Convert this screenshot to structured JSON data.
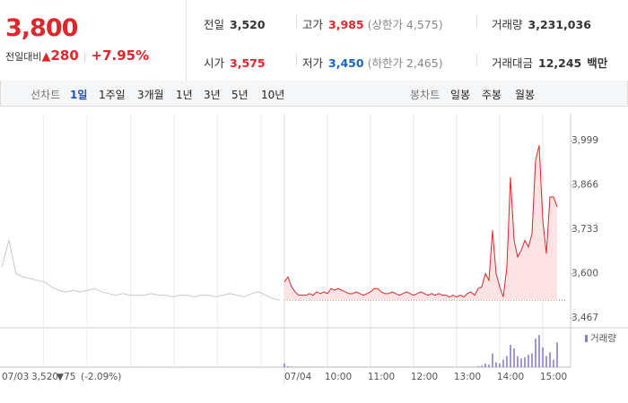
{
  "header": {
    "price": "3,800",
    "change_label": "전일대비",
    "change": "280",
    "change_pct": "+7.95%"
  },
  "stats": {
    "prev_label": "전일",
    "prev": "3,520",
    "high_label": "고가",
    "high": "3,985",
    "upper_limit": "(상한가 4,575)",
    "volume_label": "거래량",
    "volume": "3,231,036",
    "open_label": "시가",
    "open": "3,575",
    "low_label": "저가",
    "low": "3,450",
    "lower_limit": "(하한가 2,465)",
    "amount_label": "거래대금",
    "amount": "12,245",
    "amount_unit": "백만"
  },
  "tabs": {
    "line_label": "선차트",
    "line_periods": [
      "1일",
      "1주일",
      "3개월",
      "1년",
      "3년",
      "5년",
      "10년"
    ],
    "candle_label": "봉차트",
    "candle_periods": [
      "일봉",
      "주봉",
      "월봉"
    ]
  },
  "chart_data": {
    "type": "line",
    "ylim": [
      3440,
      4080
    ],
    "yticks": [
      {
        "value": 3999,
        "label": "3,999"
      },
      {
        "value": 3866,
        "label": "3,866"
      },
      {
        "value": 3733,
        "label": "3,733"
      },
      {
        "value": 3600,
        "label": "3,600"
      },
      {
        "value": 3467,
        "label": "3,467"
      }
    ],
    "xticks": [
      {
        "value": "09:00",
        "label": "07/04"
      },
      "10:00",
      "11:00",
      "12:00",
      "13:00",
      "14:00",
      "15:00"
    ],
    "baseline": 3520,
    "previous": {
      "date": "07/03",
      "close": "3,520",
      "change": "▼75",
      "change_pct": "(-2.09%)",
      "color": "#c8c8c8",
      "values": [
        3620,
        3700,
        3600,
        3590,
        3585,
        3580,
        3575,
        3560,
        3550,
        3545,
        3550,
        3545,
        3550,
        3555,
        3545,
        3540,
        3535,
        3540,
        3535,
        3535,
        3535,
        3540,
        3535,
        3535,
        3530,
        3535,
        3535,
        3530,
        3535,
        3535,
        3530,
        3535,
        3540,
        3535,
        3530,
        3540,
        3545,
        3535,
        3525,
        3520
      ]
    },
    "x": [
      "09:00",
      "09:05",
      "09:10",
      "09:15",
      "09:20",
      "09:25",
      "09:30",
      "09:35",
      "09:40",
      "09:45",
      "09:50",
      "09:55",
      "10:00",
      "10:05",
      "10:10",
      "10:15",
      "10:20",
      "10:25",
      "10:30",
      "10:35",
      "10:40",
      "10:45",
      "10:50",
      "10:55",
      "11:00",
      "11:05",
      "11:10",
      "11:15",
      "11:20",
      "11:25",
      "11:30",
      "11:35",
      "11:40",
      "11:45",
      "11:50",
      "11:55",
      "12:00",
      "12:05",
      "12:10",
      "12:15",
      "12:20",
      "12:25",
      "12:30",
      "12:35",
      "12:40",
      "12:45",
      "12:50",
      "12:55",
      "13:00",
      "13:05",
      "13:10",
      "13:15",
      "13:20",
      "13:25",
      "13:30",
      "13:35",
      "13:40",
      "13:45",
      "13:50",
      "13:55",
      "14:00",
      "14:05",
      "14:10",
      "14:15",
      "14:20",
      "14:25",
      "14:30",
      "14:35",
      "14:40",
      "14:45",
      "14:50",
      "14:55",
      "15:00",
      "15:05",
      "15:10",
      "15:15",
      "15:20"
    ],
    "series": [
      {
        "name": "price",
        "color": "#e0262a",
        "values": [
          3575,
          3590,
          3560,
          3545,
          3535,
          3535,
          3535,
          3540,
          3535,
          3545,
          3540,
          3545,
          3540,
          3555,
          3550,
          3555,
          3550,
          3545,
          3540,
          3540,
          3545,
          3540,
          3535,
          3540,
          3545,
          3555,
          3555,
          3545,
          3540,
          3540,
          3545,
          3540,
          3535,
          3540,
          3545,
          3540,
          3535,
          3540,
          3545,
          3540,
          3535,
          3540,
          3535,
          3540,
          3535,
          3535,
          3530,
          3535,
          3530,
          3535,
          3530,
          3540,
          3545,
          3535,
          3555,
          3560,
          3600,
          3580,
          3730,
          3600,
          3560,
          3530,
          3620,
          3890,
          3700,
          3650,
          3670,
          3700,
          3680,
          3720,
          3940,
          3985,
          3760,
          3660,
          3830,
          3830,
          3800
        ]
      }
    ],
    "volume": {
      "name": "거래량",
      "color": "#8e7cc3",
      "values": [
        30000,
        8000,
        6000,
        4000,
        3000,
        3000,
        2500,
        2000,
        2000,
        3000,
        2000,
        2500,
        2000,
        3000,
        2000,
        2500,
        2000,
        1500,
        1500,
        1500,
        2000,
        1500,
        1500,
        1500,
        2000,
        3000,
        2000,
        1500,
        1500,
        1500,
        1500,
        1500,
        1500,
        1500,
        1500,
        1500,
        1500,
        1500,
        1500,
        1500,
        1500,
        1500,
        1500,
        1500,
        1500,
        1500,
        1500,
        1500,
        1500,
        1500,
        1500,
        2000,
        3000,
        2000,
        8000,
        12000,
        30000,
        20000,
        110000,
        40000,
        30000,
        60000,
        90000,
        180000,
        150000,
        90000,
        70000,
        80000,
        100000,
        110000,
        230000,
        260000,
        160000,
        90000,
        120000,
        60000,
        200000
      ]
    }
  }
}
